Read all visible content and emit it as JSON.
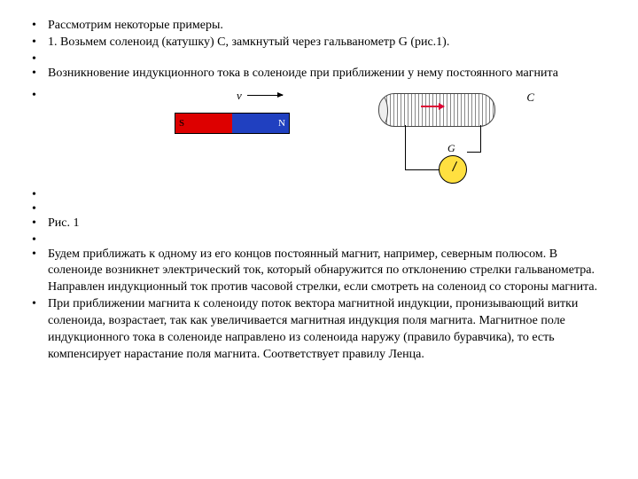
{
  "bullets": {
    "b1": "Рассмотрим некоторые примеры.",
    "b2": "1. Возьмем соленоид (катушку) С, замкнутый через гальванометр G (рис.1).",
    "b4": "Возникновение индукционного тока в соленоиде при приближении у нему постоянного магнита",
    "fig_caption": "Рис. 1",
    "b10": "Будем приближать к одному из его концов постоянный магнит, например, северным полюсом. В соленоиде возникнет электрический ток, который обнаружится по отклонению стрелки гальванометра. Направлен индукционный ток против часовой стрелки, если смотреть на соленоид со стороны магнита.",
    "b11": "При приближении магнита к соленоиду поток вектора магнитной индукции, пронизывающий витки соленоида, возрастает, так как увеличивается магнитная индукция поля магнита. Магнитное поле индукционного тока в соленоиде направлено из соленоида наружу (правило буравчика), то есть компенсирует нарастание поля магнита. Соответствует правилу Ленца."
  },
  "figure": {
    "v": "v",
    "s": "S",
    "n": "N",
    "c": "C",
    "g": "G",
    "magnet_s_color": "#d00000",
    "magnet_n_color": "#2040c0",
    "galvanometer_color": "#ffe040",
    "arrow_velocity_color": "#000000",
    "arrow_current_color": "#d03050"
  }
}
